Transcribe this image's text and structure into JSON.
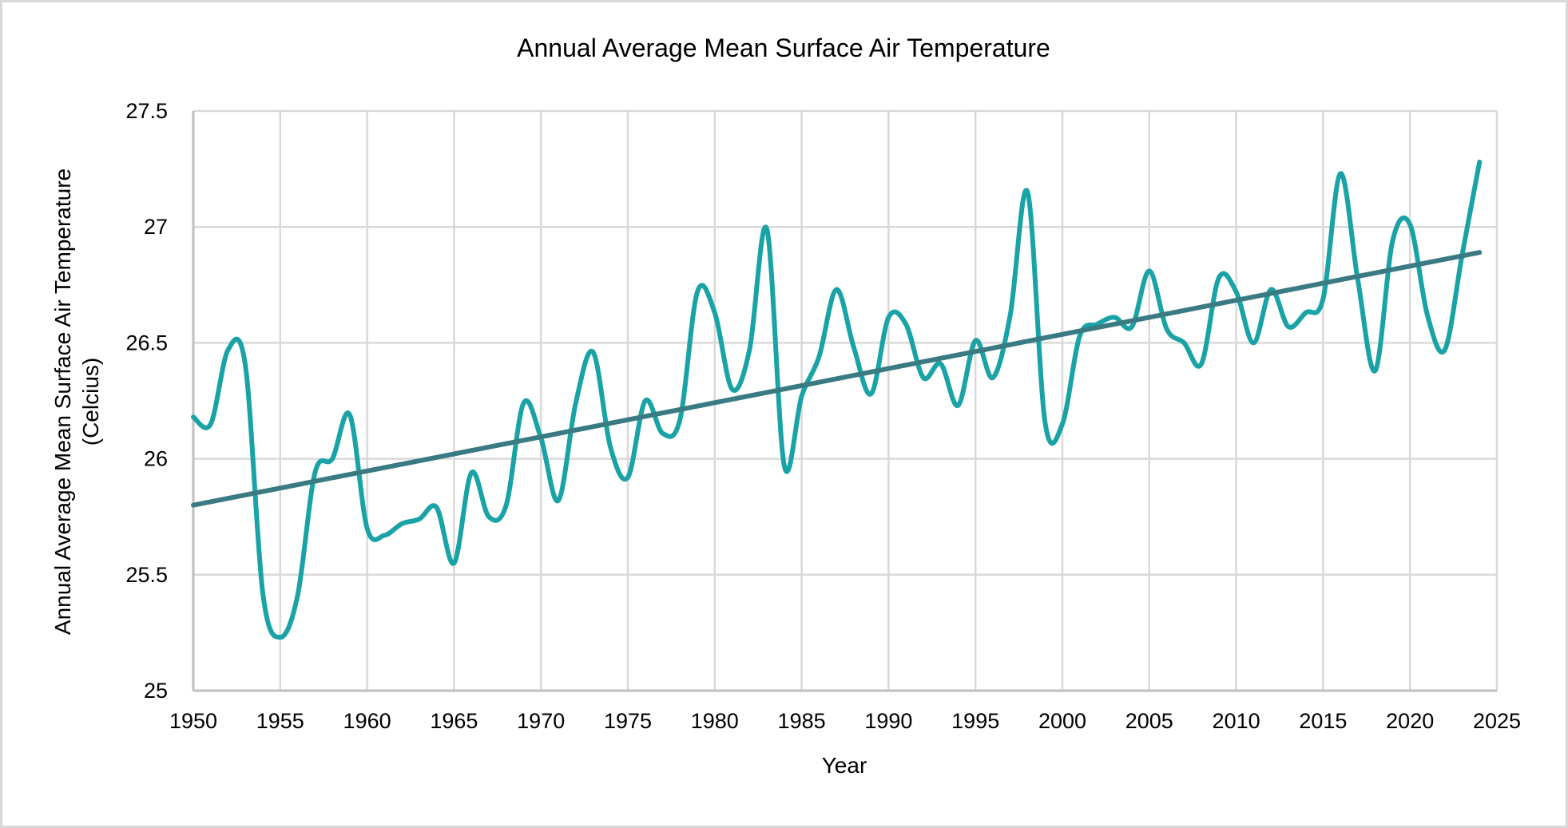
{
  "chart_data": {
    "type": "line",
    "title": "Annual Average Mean Surface Air Temperature",
    "xlabel": "Year",
    "ylabel": "Annual Average Mean Surface Air Temperature (Celcius)",
    "ylabel_lines": [
      "Annual Average Mean Surface Air Temperature",
      "(Celcius)"
    ],
    "xlim": [
      1950,
      2025
    ],
    "ylim": [
      25,
      27.5
    ],
    "x_ticks": [
      1950,
      1955,
      1960,
      1965,
      1970,
      1975,
      1980,
      1985,
      1990,
      1995,
      2000,
      2005,
      2010,
      2015,
      2020,
      2025
    ],
    "y_ticks": [
      25,
      25.5,
      26,
      26.5,
      27,
      27.5
    ],
    "y_tick_labels": [
      "25",
      "25.5",
      "26",
      "26.5",
      "27",
      "27.5"
    ],
    "grid": true,
    "legend": "none",
    "series": [
      {
        "name": "Annual Average Mean Surface Air Temperature",
        "color": "#1aa3a6",
        "smooth": true,
        "x": [
          1950,
          1951,
          1952,
          1953,
          1954,
          1955,
          1956,
          1957,
          1958,
          1959,
          1960,
          1961,
          1962,
          1963,
          1964,
          1965,
          1966,
          1967,
          1968,
          1969,
          1970,
          1971,
          1972,
          1973,
          1974,
          1975,
          1976,
          1977,
          1978,
          1979,
          1980,
          1981,
          1982,
          1983,
          1984,
          1985,
          1986,
          1987,
          1988,
          1989,
          1990,
          1991,
          1992,
          1993,
          1994,
          1995,
          1996,
          1997,
          1998,
          1999,
          2000,
          2001,
          2002,
          2003,
          2004,
          2005,
          2006,
          2007,
          2008,
          2009,
          2010,
          2011,
          2012,
          2013,
          2014,
          2015,
          2016,
          2017,
          2018,
          2019,
          2020,
          2021,
          2022,
          2023,
          2024
        ],
        "values": [
          26.18,
          26.15,
          26.47,
          26.4,
          25.42,
          25.23,
          25.41,
          25.94,
          26.0,
          26.19,
          25.7,
          25.67,
          25.72,
          25.74,
          25.79,
          25.55,
          25.94,
          25.75,
          25.8,
          26.24,
          26.09,
          25.82,
          26.24,
          26.46,
          26.05,
          25.92,
          26.25,
          26.11,
          26.17,
          26.72,
          26.63,
          26.3,
          26.47,
          26.99,
          25.97,
          26.27,
          26.44,
          26.73,
          26.48,
          26.28,
          26.61,
          26.58,
          26.35,
          26.41,
          26.23,
          26.51,
          26.35,
          26.62,
          27.15,
          26.16,
          26.15,
          26.53,
          26.58,
          26.61,
          26.57,
          26.81,
          26.56,
          26.5,
          26.41,
          26.78,
          26.72,
          26.5,
          26.73,
          26.57,
          26.63,
          26.69,
          27.23,
          26.77,
          26.38,
          26.94,
          27.01,
          26.62,
          26.47,
          26.88,
          27.28
        ]
      },
      {
        "name": "Linear trend",
        "type": "trendline",
        "color": "#3a7a82",
        "x": [
          1950,
          2024
        ],
        "values": [
          25.8,
          26.89
        ]
      }
    ]
  }
}
